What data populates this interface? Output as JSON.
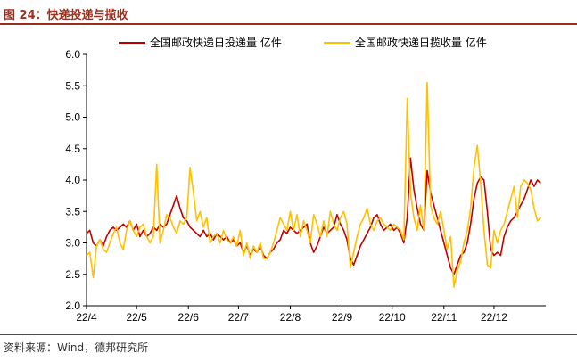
{
  "header": {
    "title": "图 24：快递投递与揽收"
  },
  "footer": {
    "source": "资料来源：Wind，德邦研究所"
  },
  "chart_data": {
    "type": "line",
    "title": "图 24：快递投递与揽收",
    "xlabel": "",
    "ylabel": "",
    "ylim": [
      2.0,
      6.0
    ],
    "yticks": [
      "2.0",
      "2.5",
      "3.0",
      "3.5",
      "4.0",
      "4.5",
      "5.0",
      "5.5",
      "6.0"
    ],
    "xticks": [
      "22/4",
      "22/5",
      "22/6",
      "22/7",
      "22/8",
      "22/9",
      "22/10",
      "22/11",
      "22/12"
    ],
    "x_unit": "days since 2022-04-01",
    "legend_position": "top",
    "grid": false,
    "series": [
      {
        "name": "全国邮政快递日投递量 亿件",
        "color": "#C00000",
        "points": [
          [
            0,
            3.15
          ],
          [
            2,
            3.2
          ],
          [
            4,
            3.0
          ],
          [
            6,
            2.95
          ],
          [
            8,
            3.05
          ],
          [
            10,
            2.95
          ],
          [
            12,
            3.1
          ],
          [
            14,
            3.2
          ],
          [
            16,
            3.25
          ],
          [
            18,
            3.2
          ],
          [
            20,
            3.25
          ],
          [
            22,
            3.3
          ],
          [
            24,
            3.25
          ],
          [
            26,
            3.35
          ],
          [
            28,
            3.2
          ],
          [
            30,
            3.3
          ],
          [
            32,
            3.1
          ],
          [
            34,
            3.2
          ],
          [
            36,
            3.1
          ],
          [
            38,
            3.15
          ],
          [
            40,
            3.25
          ],
          [
            42,
            3.2
          ],
          [
            44,
            3.3
          ],
          [
            46,
            3.25
          ],
          [
            48,
            3.3
          ],
          [
            50,
            3.45
          ],
          [
            52,
            3.6
          ],
          [
            54,
            3.75
          ],
          [
            56,
            3.55
          ],
          [
            58,
            3.4
          ],
          [
            60,
            3.35
          ],
          [
            62,
            3.25
          ],
          [
            64,
            3.2
          ],
          [
            66,
            3.15
          ],
          [
            68,
            3.1
          ],
          [
            70,
            3.2
          ],
          [
            72,
            3.1
          ],
          [
            74,
            3.15
          ],
          [
            76,
            3.05
          ],
          [
            78,
            3.15
          ],
          [
            80,
            3.1
          ],
          [
            82,
            3.05
          ],
          [
            84,
            3.1
          ],
          [
            86,
            3.0
          ],
          [
            88,
            3.05
          ],
          [
            90,
            2.95
          ],
          [
            92,
            3.0
          ],
          [
            94,
            2.85
          ],
          [
            96,
            2.95
          ],
          [
            98,
            2.8
          ],
          [
            100,
            2.9
          ],
          [
            102,
            2.85
          ],
          [
            104,
            2.95
          ],
          [
            106,
            2.8
          ],
          [
            108,
            2.75
          ],
          [
            110,
            2.85
          ],
          [
            112,
            2.9
          ],
          [
            114,
            3.0
          ],
          [
            116,
            3.05
          ],
          [
            118,
            3.2
          ],
          [
            120,
            3.15
          ],
          [
            122,
            3.25
          ],
          [
            124,
            3.2
          ],
          [
            126,
            3.15
          ],
          [
            128,
            3.2
          ],
          [
            130,
            3.25
          ],
          [
            132,
            3.3
          ],
          [
            134,
            3.0
          ],
          [
            136,
            2.85
          ],
          [
            138,
            2.95
          ],
          [
            140,
            3.1
          ],
          [
            142,
            3.25
          ],
          [
            144,
            3.15
          ],
          [
            146,
            3.2
          ],
          [
            148,
            3.25
          ],
          [
            150,
            3.45
          ],
          [
            152,
            3.3
          ],
          [
            154,
            3.2
          ],
          [
            156,
            3.05
          ],
          [
            158,
            2.75
          ],
          [
            160,
            2.65
          ],
          [
            162,
            2.8
          ],
          [
            164,
            2.95
          ],
          [
            166,
            3.05
          ],
          [
            168,
            3.15
          ],
          [
            170,
            3.25
          ],
          [
            172,
            3.4
          ],
          [
            174,
            3.45
          ],
          [
            176,
            3.3
          ],
          [
            178,
            3.2
          ],
          [
            180,
            3.25
          ],
          [
            182,
            3.3
          ],
          [
            184,
            3.2
          ],
          [
            186,
            3.25
          ],
          [
            188,
            3.15
          ],
          [
            190,
            3.0
          ],
          [
            192,
            3.4
          ],
          [
            194,
            4.35
          ],
          [
            196,
            3.85
          ],
          [
            198,
            3.55
          ],
          [
            200,
            3.3
          ],
          [
            202,
            3.2
          ],
          [
            204,
            4.15
          ],
          [
            206,
            3.8
          ],
          [
            208,
            3.6
          ],
          [
            210,
            3.4
          ],
          [
            212,
            3.2
          ],
          [
            214,
            3.0
          ],
          [
            216,
            2.8
          ],
          [
            218,
            2.6
          ],
          [
            220,
            2.5
          ],
          [
            222,
            2.65
          ],
          [
            224,
            2.8
          ],
          [
            226,
            2.85
          ],
          [
            228,
            3.0
          ],
          [
            230,
            3.3
          ],
          [
            232,
            3.7
          ],
          [
            234,
            3.95
          ],
          [
            236,
            4.05
          ],
          [
            238,
            4.0
          ],
          [
            240,
            3.5
          ],
          [
            242,
            2.9
          ],
          [
            244,
            2.8
          ],
          [
            246,
            2.85
          ],
          [
            248,
            2.8
          ],
          [
            250,
            3.1
          ],
          [
            252,
            3.25
          ],
          [
            254,
            3.35
          ],
          [
            256,
            3.4
          ],
          [
            258,
            3.5
          ],
          [
            260,
            3.6
          ],
          [
            262,
            3.7
          ],
          [
            264,
            3.85
          ],
          [
            266,
            4.0
          ],
          [
            268,
            3.9
          ],
          [
            270,
            4.0
          ],
          [
            272,
            3.95
          ]
        ]
      },
      {
        "name": "全国邮政快递日揽收量 亿件",
        "color": "#FFC000",
        "points": [
          [
            0,
            2.8
          ],
          [
            2,
            2.85
          ],
          [
            4,
            2.45
          ],
          [
            6,
            2.95
          ],
          [
            8,
            3.05
          ],
          [
            10,
            2.9
          ],
          [
            12,
            2.85
          ],
          [
            14,
            3.0
          ],
          [
            16,
            3.15
          ],
          [
            18,
            3.25
          ],
          [
            20,
            3.0
          ],
          [
            22,
            2.9
          ],
          [
            24,
            3.2
          ],
          [
            26,
            3.35
          ],
          [
            28,
            3.2
          ],
          [
            30,
            3.1
          ],
          [
            32,
            3.25
          ],
          [
            34,
            3.3
          ],
          [
            36,
            3.1
          ],
          [
            38,
            3.0
          ],
          [
            40,
            3.1
          ],
          [
            42,
            4.25
          ],
          [
            44,
            3.0
          ],
          [
            46,
            3.2
          ],
          [
            48,
            3.45
          ],
          [
            50,
            3.4
          ],
          [
            52,
            3.25
          ],
          [
            54,
            3.15
          ],
          [
            56,
            3.35
          ],
          [
            58,
            3.3
          ],
          [
            60,
            3.4
          ],
          [
            62,
            4.2
          ],
          [
            64,
            3.8
          ],
          [
            66,
            3.35
          ],
          [
            68,
            3.5
          ],
          [
            70,
            3.25
          ],
          [
            72,
            3.4
          ],
          [
            74,
            3.0
          ],
          [
            76,
            3.1
          ],
          [
            78,
            3.15
          ],
          [
            80,
            3.0
          ],
          [
            82,
            3.2
          ],
          [
            84,
            3.05
          ],
          [
            86,
            3.0
          ],
          [
            88,
            3.1
          ],
          [
            90,
            2.95
          ],
          [
            92,
            3.2
          ],
          [
            94,
            2.8
          ],
          [
            96,
            3.0
          ],
          [
            98,
            2.75
          ],
          [
            100,
            2.95
          ],
          [
            102,
            2.85
          ],
          [
            104,
            3.0
          ],
          [
            106,
            2.75
          ],
          [
            108,
            2.75
          ],
          [
            110,
            2.85
          ],
          [
            112,
            3.0
          ],
          [
            114,
            3.2
          ],
          [
            116,
            3.4
          ],
          [
            118,
            3.3
          ],
          [
            120,
            3.2
          ],
          [
            122,
            3.5
          ],
          [
            124,
            3.2
          ],
          [
            126,
            3.45
          ],
          [
            128,
            3.1
          ],
          [
            130,
            3.35
          ],
          [
            132,
            3.2
          ],
          [
            134,
            3.0
          ],
          [
            136,
            3.45
          ],
          [
            138,
            3.3
          ],
          [
            140,
            3.1
          ],
          [
            142,
            3.35
          ],
          [
            144,
            3.1
          ],
          [
            146,
            3.5
          ],
          [
            148,
            3.3
          ],
          [
            150,
            3.2
          ],
          [
            152,
            3.4
          ],
          [
            154,
            3.5
          ],
          [
            156,
            3.3
          ],
          [
            158,
            2.6
          ],
          [
            160,
            2.85
          ],
          [
            162,
            3.1
          ],
          [
            164,
            3.3
          ],
          [
            166,
            3.4
          ],
          [
            168,
            3.55
          ],
          [
            170,
            3.3
          ],
          [
            172,
            3.2
          ],
          [
            174,
            3.35
          ],
          [
            176,
            3.4
          ],
          [
            178,
            3.3
          ],
          [
            180,
            3.25
          ],
          [
            182,
            3.2
          ],
          [
            184,
            3.3
          ],
          [
            186,
            3.25
          ],
          [
            188,
            3.2
          ],
          [
            190,
            3.05
          ],
          [
            192,
            5.3
          ],
          [
            194,
            3.8
          ],
          [
            196,
            3.4
          ],
          [
            198,
            3.2
          ],
          [
            200,
            3.6
          ],
          [
            202,
            3.2
          ],
          [
            204,
            5.55
          ],
          [
            206,
            3.6
          ],
          [
            208,
            3.4
          ],
          [
            210,
            3.3
          ],
          [
            212,
            3.5
          ],
          [
            214,
            3.2
          ],
          [
            216,
            2.9
          ],
          [
            218,
            3.1
          ],
          [
            220,
            2.3
          ],
          [
            222,
            2.55
          ],
          [
            224,
            2.7
          ],
          [
            226,
            3.0
          ],
          [
            228,
            3.2
          ],
          [
            230,
            3.55
          ],
          [
            232,
            4.2
          ],
          [
            234,
            4.55
          ],
          [
            236,
            3.95
          ],
          [
            238,
            3.2
          ],
          [
            240,
            2.65
          ],
          [
            242,
            2.6
          ],
          [
            244,
            3.2
          ],
          [
            246,
            3.0
          ],
          [
            248,
            3.2
          ],
          [
            250,
            3.3
          ],
          [
            252,
            3.5
          ],
          [
            254,
            3.7
          ],
          [
            256,
            3.9
          ],
          [
            258,
            3.4
          ],
          [
            260,
            3.9
          ],
          [
            262,
            4.0
          ],
          [
            264,
            3.95
          ],
          [
            266,
            3.85
          ],
          [
            268,
            3.55
          ],
          [
            270,
            3.35
          ],
          [
            272,
            3.4
          ]
        ]
      }
    ]
  }
}
